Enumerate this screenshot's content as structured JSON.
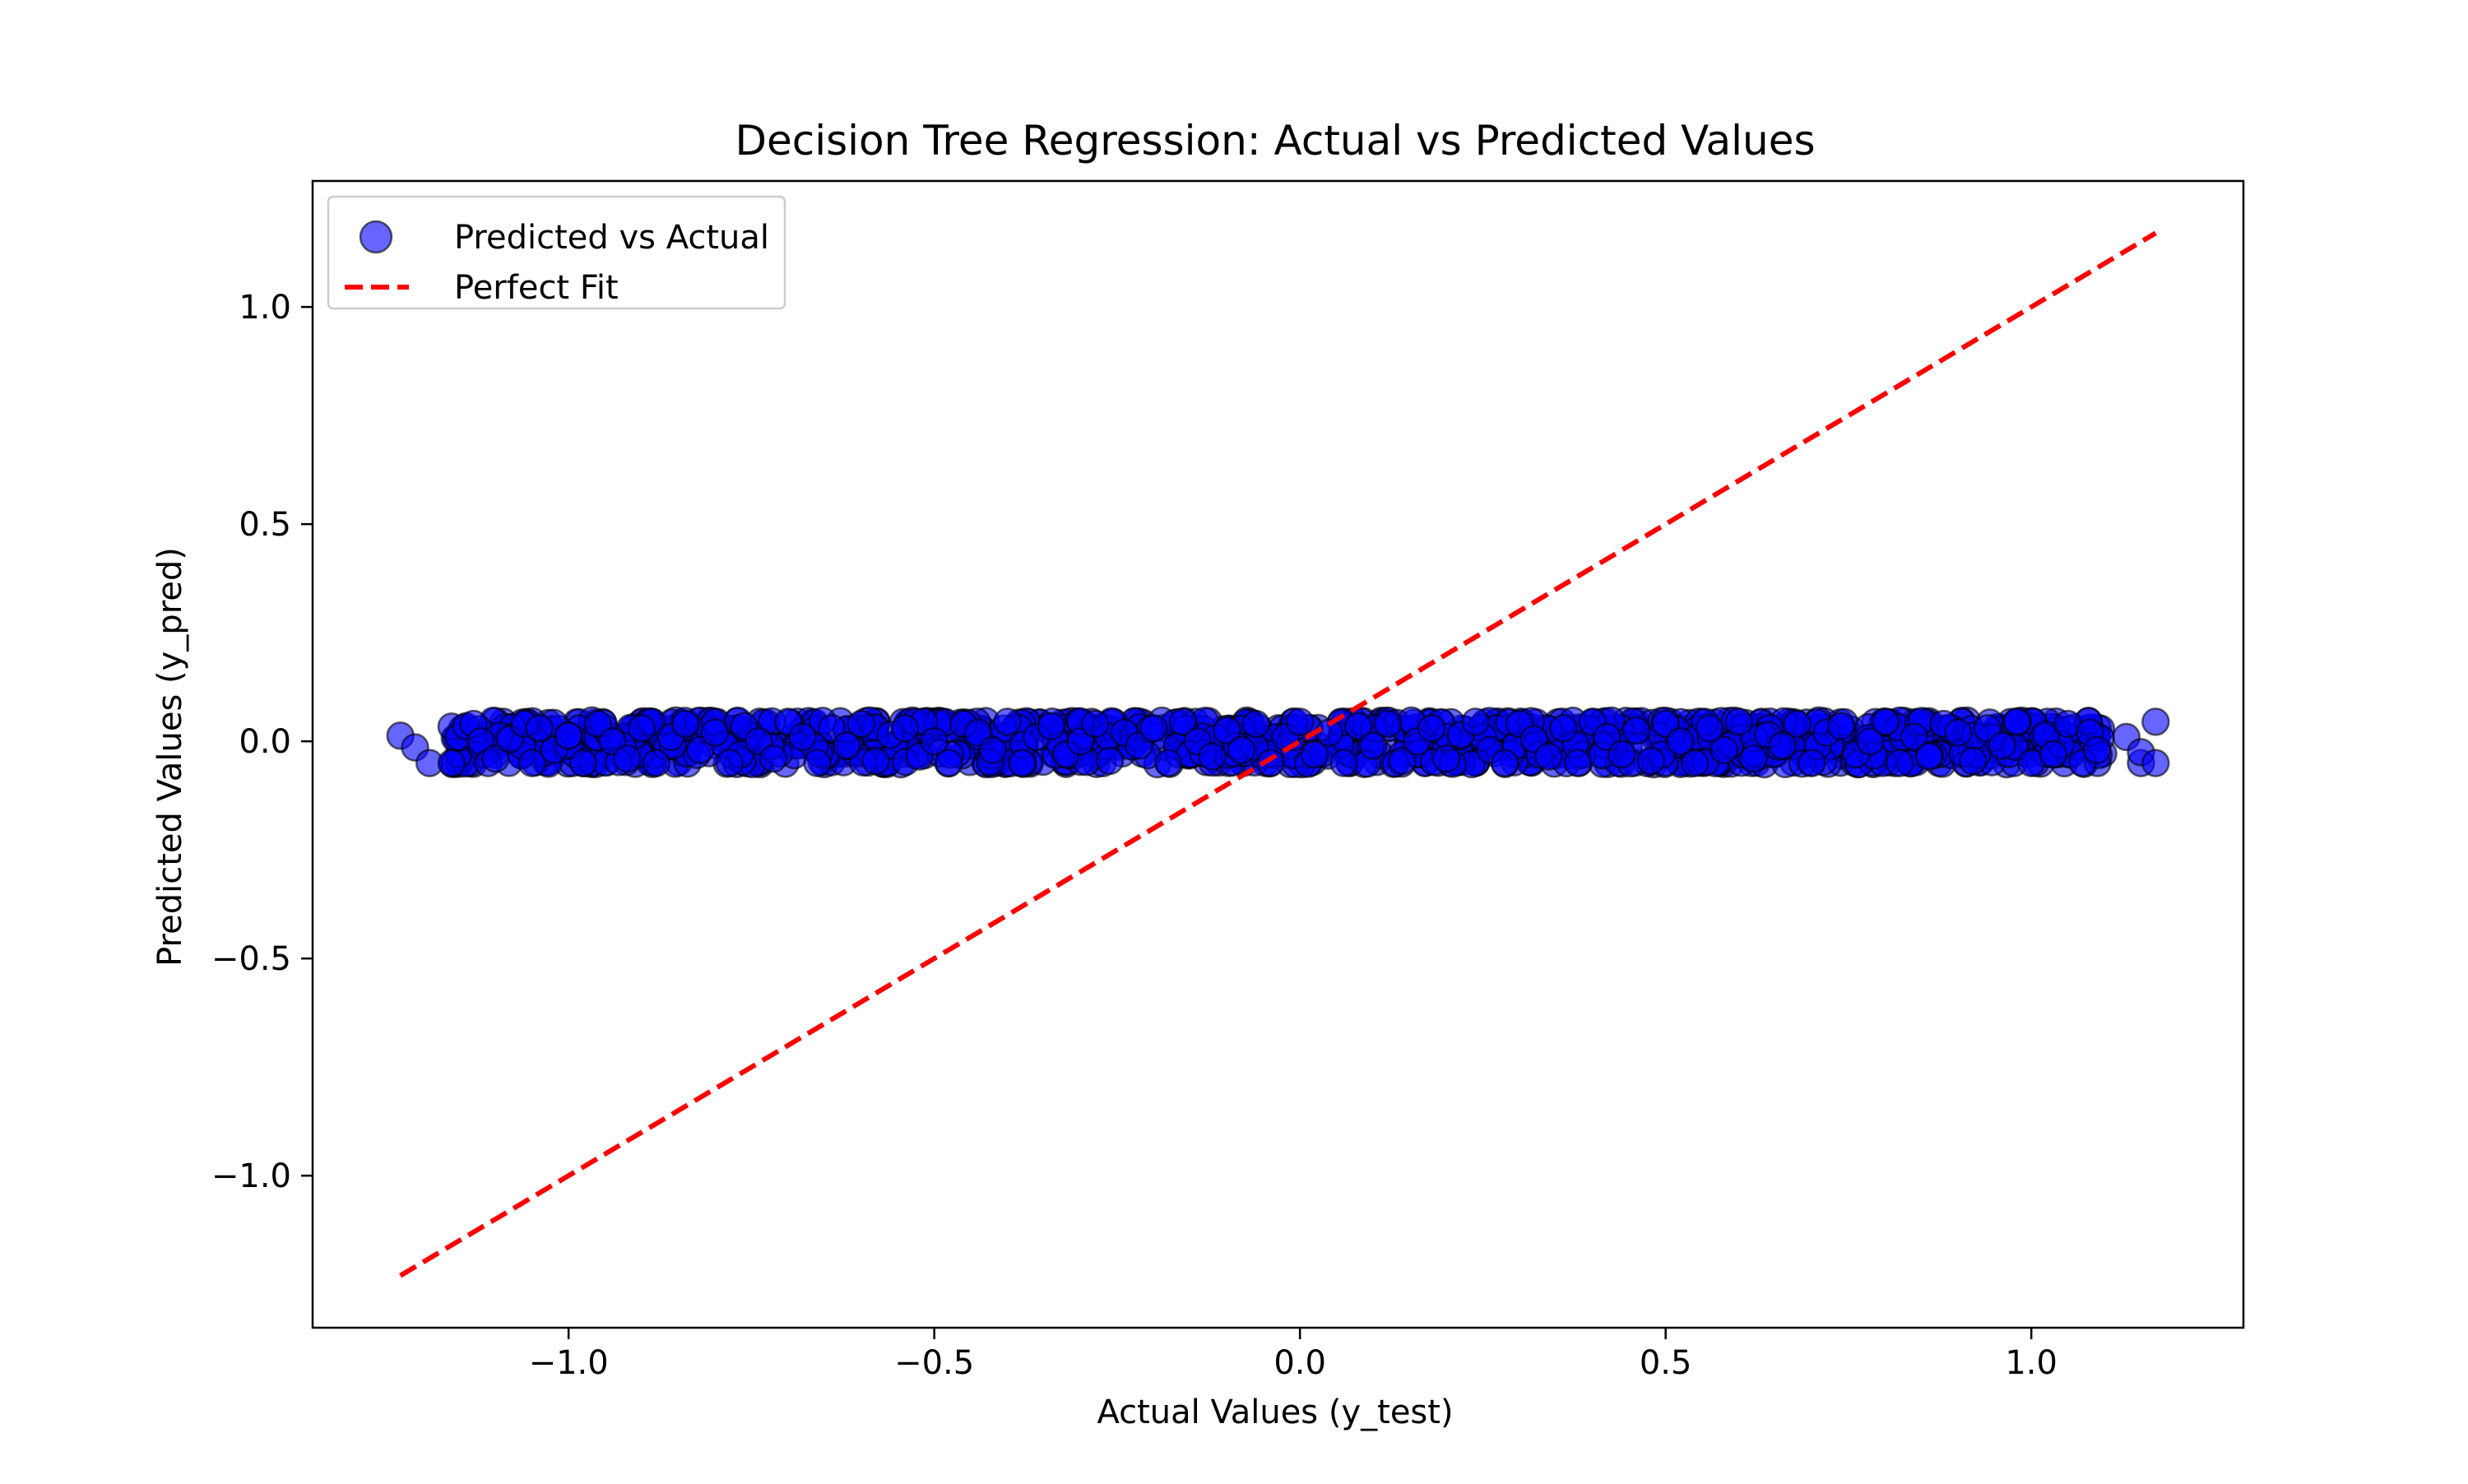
{
  "chart_data": {
    "type": "scatter",
    "title": "Decision Tree Regression: Actual vs Predicted Values",
    "xlabel": "Actual Values (y_test)",
    "ylabel": "Predicted Values (y_pred)",
    "xlim": [
      -1.35,
      1.29
    ],
    "ylim": [
      -1.35,
      1.29
    ],
    "x_ticks": [
      -1.0,
      -0.5,
      0.0,
      0.5,
      1.0
    ],
    "x_tick_labels": [
      "−1.0",
      "−0.5",
      "0.0",
      "0.5",
      "1.0"
    ],
    "y_ticks": [
      -1.0,
      -0.5,
      0.0,
      0.5,
      1.0
    ],
    "y_tick_labels": [
      "−1.0",
      "−0.5",
      "0.0",
      "0.5",
      "1.0"
    ],
    "grid": false,
    "legend_position": "top-left",
    "series": [
      {
        "name": "Predicted vs Actual",
        "kind": "scatter",
        "color": "#0000ff",
        "edgecolor": "#000000",
        "alpha": 0.6,
        "predicted_levels": [
          -0.05,
          -0.03,
          -0.01,
          0.01,
          0.03,
          0.045
        ],
        "actual_range": [
          -1.23,
          1.17
        ],
        "points": [
          [
            -1.23,
            0.013
          ],
          [
            -1.21,
            -0.014
          ],
          [
            -1.19,
            -0.05
          ],
          [
            -1.16,
            0.034
          ],
          [
            -1.16,
            -0.05
          ],
          [
            -1.15,
            0.01
          ],
          [
            -1.14,
            0.035
          ],
          [
            -1.13,
            0.04
          ],
          [
            -1.12,
            0.0
          ],
          [
            -1.11,
            -0.05
          ],
          [
            -1.1,
            -0.04
          ],
          [
            -1.08,
            0.005
          ],
          [
            -1.06,
            0.04
          ],
          [
            -1.05,
            -0.05
          ],
          [
            -1.04,
            0.03
          ],
          [
            -1.02,
            -0.02
          ],
          [
            -1.0,
            0.013
          ],
          [
            -0.98,
            -0.05
          ],
          [
            -0.96,
            0.04
          ],
          [
            -0.94,
            0.0
          ],
          [
            -0.92,
            -0.04
          ],
          [
            -0.9,
            0.03
          ],
          [
            -0.88,
            -0.05
          ],
          [
            -0.86,
            0.01
          ],
          [
            -0.84,
            0.04
          ],
          [
            -0.82,
            -0.02
          ],
          [
            -0.8,
            0.02
          ],
          [
            -0.78,
            -0.05
          ],
          [
            -0.76,
            0.035
          ],
          [
            -0.74,
            0.0
          ],
          [
            -0.72,
            -0.04
          ],
          [
            -0.7,
            0.045
          ],
          [
            -0.68,
            0.01
          ],
          [
            -0.66,
            -0.05
          ],
          [
            -0.64,
            0.03
          ],
          [
            -0.62,
            -0.01
          ],
          [
            -0.6,
            0.04
          ],
          [
            -0.58,
            -0.045
          ],
          [
            -0.56,
            0.015
          ],
          [
            -0.54,
            0.03
          ],
          [
            -0.52,
            -0.035
          ],
          [
            -0.5,
            0.0
          ],
          [
            -0.48,
            -0.05
          ],
          [
            -0.46,
            0.04
          ],
          [
            -0.44,
            0.02
          ],
          [
            -0.42,
            -0.02
          ],
          [
            -0.4,
            0.045
          ],
          [
            -0.38,
            -0.05
          ],
          [
            -0.36,
            0.01
          ],
          [
            -0.34,
            0.035
          ],
          [
            -0.32,
            -0.03
          ],
          [
            -0.3,
            0.0
          ],
          [
            -0.28,
            0.04
          ],
          [
            -0.26,
            -0.045
          ],
          [
            -0.24,
            0.02
          ],
          [
            -0.22,
            -0.01
          ],
          [
            -0.2,
            0.03
          ],
          [
            -0.18,
            -0.05
          ],
          [
            -0.16,
            0.045
          ],
          [
            -0.14,
            0.0
          ],
          [
            -0.12,
            -0.035
          ],
          [
            -0.1,
            0.025
          ],
          [
            -0.08,
            -0.02
          ],
          [
            -0.06,
            0.04
          ],
          [
            -0.04,
            -0.05
          ],
          [
            -0.02,
            0.01
          ],
          [
            0.0,
            0.045
          ],
          [
            0.02,
            -0.03
          ],
          [
            0.04,
            0.02
          ],
          [
            0.06,
            -0.05
          ],
          [
            0.08,
            0.035
          ],
          [
            0.1,
            -0.01
          ],
          [
            0.12,
            0.04
          ],
          [
            0.14,
            -0.045
          ],
          [
            0.16,
            0.0
          ],
          [
            0.18,
            0.03
          ],
          [
            0.2,
            -0.04
          ],
          [
            0.22,
            0.015
          ],
          [
            0.24,
            0.045
          ],
          [
            0.26,
            -0.02
          ],
          [
            0.28,
            -0.05
          ],
          [
            0.3,
            0.04
          ],
          [
            0.32,
            0.005
          ],
          [
            0.34,
            -0.035
          ],
          [
            0.36,
            0.03
          ],
          [
            0.38,
            -0.05
          ],
          [
            0.4,
            0.045
          ],
          [
            0.42,
            0.01
          ],
          [
            0.44,
            -0.03
          ],
          [
            0.46,
            0.025
          ],
          [
            0.48,
            -0.045
          ],
          [
            0.5,
            0.04
          ],
          [
            0.52,
            0.0
          ],
          [
            0.54,
            -0.05
          ],
          [
            0.56,
            0.03
          ],
          [
            0.58,
            -0.02
          ],
          [
            0.6,
            0.045
          ],
          [
            0.62,
            -0.04
          ],
          [
            0.64,
            0.015
          ],
          [
            0.66,
            -0.01
          ],
          [
            0.68,
            0.04
          ],
          [
            0.7,
            -0.05
          ],
          [
            0.72,
            0.02
          ],
          [
            0.74,
            0.035
          ],
          [
            0.76,
            -0.03
          ],
          [
            0.78,
            0.0
          ],
          [
            0.8,
            0.045
          ],
          [
            0.82,
            -0.05
          ],
          [
            0.84,
            0.01
          ],
          [
            0.86,
            -0.035
          ],
          [
            0.88,
            0.04
          ],
          [
            0.9,
            0.02
          ],
          [
            0.92,
            -0.045
          ],
          [
            0.94,
            0.03
          ],
          [
            0.96,
            -0.01
          ],
          [
            0.98,
            0.045
          ],
          [
            1.0,
            -0.05
          ],
          [
            1.02,
            0.015
          ],
          [
            1.03,
            -0.03
          ],
          [
            1.05,
            0.04
          ],
          [
            1.07,
            -0.05
          ],
          [
            1.08,
            0.02
          ],
          [
            1.09,
            -0.02
          ],
          [
            1.13,
            0.01
          ],
          [
            1.15,
            -0.05
          ],
          [
            1.15,
            -0.025
          ],
          [
            1.17,
            0.045
          ],
          [
            1.17,
            -0.05
          ]
        ]
      },
      {
        "name": "Perfect Fit",
        "kind": "line",
        "color": "#ff0000",
        "linestyle": "dashed",
        "x": [
          -1.23,
          1.17
        ],
        "y": [
          -1.23,
          1.17
        ]
      }
    ]
  }
}
